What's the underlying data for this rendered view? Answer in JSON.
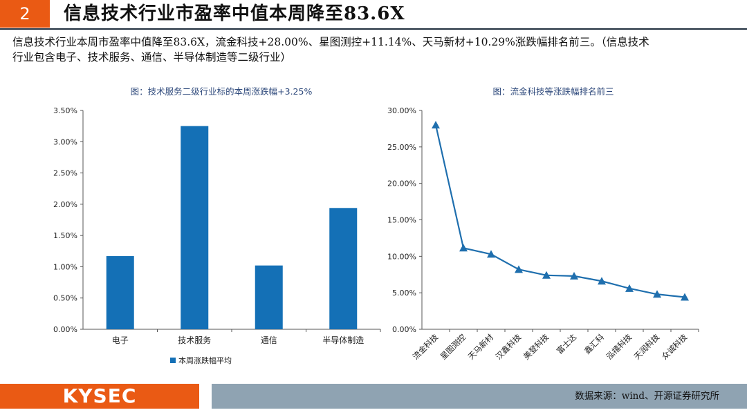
{
  "header": {
    "section_number": "2",
    "title": "信息技术行业市盈率中值本周降至83.6X"
  },
  "summary": {
    "line1": "信息技术行业本周市盈率中值降至83.6X，流金科技+28.00%、星图测控+11.14%、天马新材+10.29%涨跌幅排名前三。（信息技术",
    "line2": "行业包含电子、技术服务、通信、半导体制造等二级行业）"
  },
  "chart_data": [
    {
      "type": "bar",
      "title": "图：技术服务二级行业标的本周涨跌幅+3.25%",
      "categories": [
        "电子",
        "技术服务",
        "通信",
        "半导体制造"
      ],
      "series": [
        {
          "name": "本周涨跌幅平均",
          "values": [
            1.17,
            3.25,
            1.02,
            1.94
          ]
        }
      ],
      "ylim": [
        0,
        3.5
      ],
      "yticks": [
        "0.00%",
        "0.50%",
        "1.00%",
        "1.50%",
        "2.00%",
        "2.50%",
        "3.00%",
        "3.50%"
      ],
      "legend_position": "bottom",
      "grid": false,
      "color": "#1470b6"
    },
    {
      "type": "line",
      "title": "图：流金科技等涨跌幅排名前三",
      "categories": [
        "流金科技",
        "星图测控",
        "天马新材",
        "汉鑫科技",
        "美登科技",
        "富士达",
        "鑫汇科",
        "泓禧科技",
        "天润科技",
        "众诚科技"
      ],
      "values": [
        28.0,
        11.14,
        10.29,
        8.2,
        7.4,
        7.3,
        6.6,
        5.6,
        4.8,
        4.4
      ],
      "ylim": [
        0,
        30
      ],
      "yticks": [
        "0.00%",
        "5.00%",
        "10.00%",
        "15.00%",
        "20.00%",
        "25.00%",
        "30.00%"
      ],
      "marker": "triangle",
      "grid": false,
      "color": "#1f6fae"
    }
  ],
  "footer": {
    "logo": "KYSEC",
    "source": "数据来源：wind、开源证券研究所"
  },
  "colors": {
    "accent": "#ea5a14",
    "footer_band": "#8fa3b2",
    "bar": "#1470b6",
    "line": "#1f6fae"
  }
}
